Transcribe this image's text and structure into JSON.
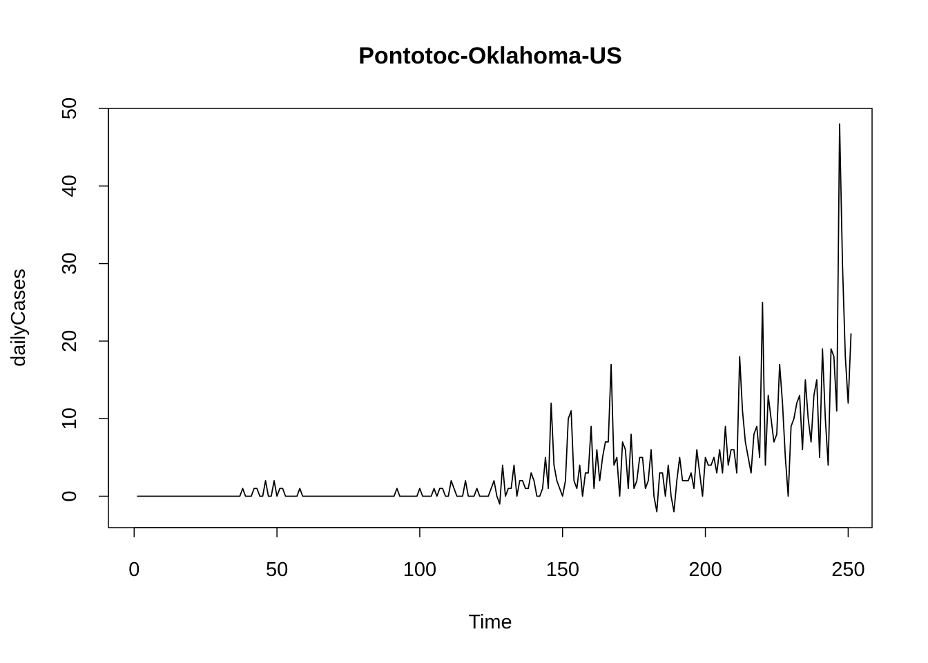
{
  "chart_data": {
    "type": "line",
    "title": "Pontotoc-Oklahoma-US",
    "xlabel": "Time",
    "ylabel": "dailyCases",
    "xlim": [
      1,
      248
    ],
    "ylim": [
      -2,
      48
    ],
    "x_ticks": [
      0,
      50,
      100,
      150,
      200,
      250
    ],
    "y_ticks": [
      0,
      10,
      20,
      30,
      40,
      50
    ],
    "grid": false,
    "legend": "none",
    "series": [
      {
        "color": "#000000",
        "values": [
          0,
          0,
          0,
          0,
          0,
          0,
          0,
          0,
          0,
          0,
          0,
          0,
          0,
          0,
          0,
          0,
          0,
          0,
          0,
          0,
          0,
          0,
          0,
          0,
          0,
          0,
          0,
          0,
          0,
          0,
          0,
          0,
          0,
          0,
          0,
          0,
          0,
          1,
          0,
          0,
          0,
          1,
          1,
          0,
          0,
          2,
          0,
          0,
          2,
          0,
          1,
          1,
          0,
          0,
          0,
          0,
          0,
          1,
          0,
          0,
          0,
          0,
          0,
          0,
          0,
          0,
          0,
          0,
          0,
          0,
          0,
          0,
          0,
          0,
          0,
          0,
          0,
          0,
          0,
          0,
          0,
          0,
          0,
          0,
          0,
          0,
          0,
          0,
          0,
          0,
          0,
          1,
          0,
          0,
          0,
          0,
          0,
          0,
          0,
          1,
          0,
          0,
          0,
          0,
          1,
          0,
          1,
          1,
          0,
          0,
          2,
          1,
          0,
          0,
          0,
          2,
          0,
          0,
          0,
          1,
          0,
          0,
          0,
          0,
          1,
          2,
          0,
          -1,
          4,
          0,
          1,
          1,
          4,
          0,
          2,
          2,
          1,
          1,
          3,
          2,
          0,
          0,
          1,
          5,
          1,
          12,
          4,
          2,
          1,
          0,
          2,
          10,
          11,
          2,
          1,
          4,
          0,
          3,
          3,
          9,
          1,
          6,
          2,
          5,
          7,
          7,
          17,
          4,
          5,
          0,
          7,
          6,
          1,
          8,
          1,
          2,
          5,
          5,
          1,
          2,
          6,
          0,
          -2,
          3,
          3,
          0,
          4,
          0,
          -2,
          2,
          5,
          2,
          2,
          2,
          3,
          1,
          6,
          3,
          0,
          5,
          4,
          4,
          5,
          3,
          6,
          3,
          9,
          4,
          6,
          6,
          3,
          18,
          11,
          7,
          5,
          3,
          8,
          9,
          5,
          25,
          4,
          13,
          10,
          7,
          8,
          17,
          12,
          5,
          0,
          9,
          10,
          12,
          13,
          6,
          15,
          10,
          7,
          13,
          15,
          5,
          19,
          10,
          4,
          19,
          18,
          11,
          48,
          30,
          18,
          12,
          21
        ]
      }
    ]
  }
}
